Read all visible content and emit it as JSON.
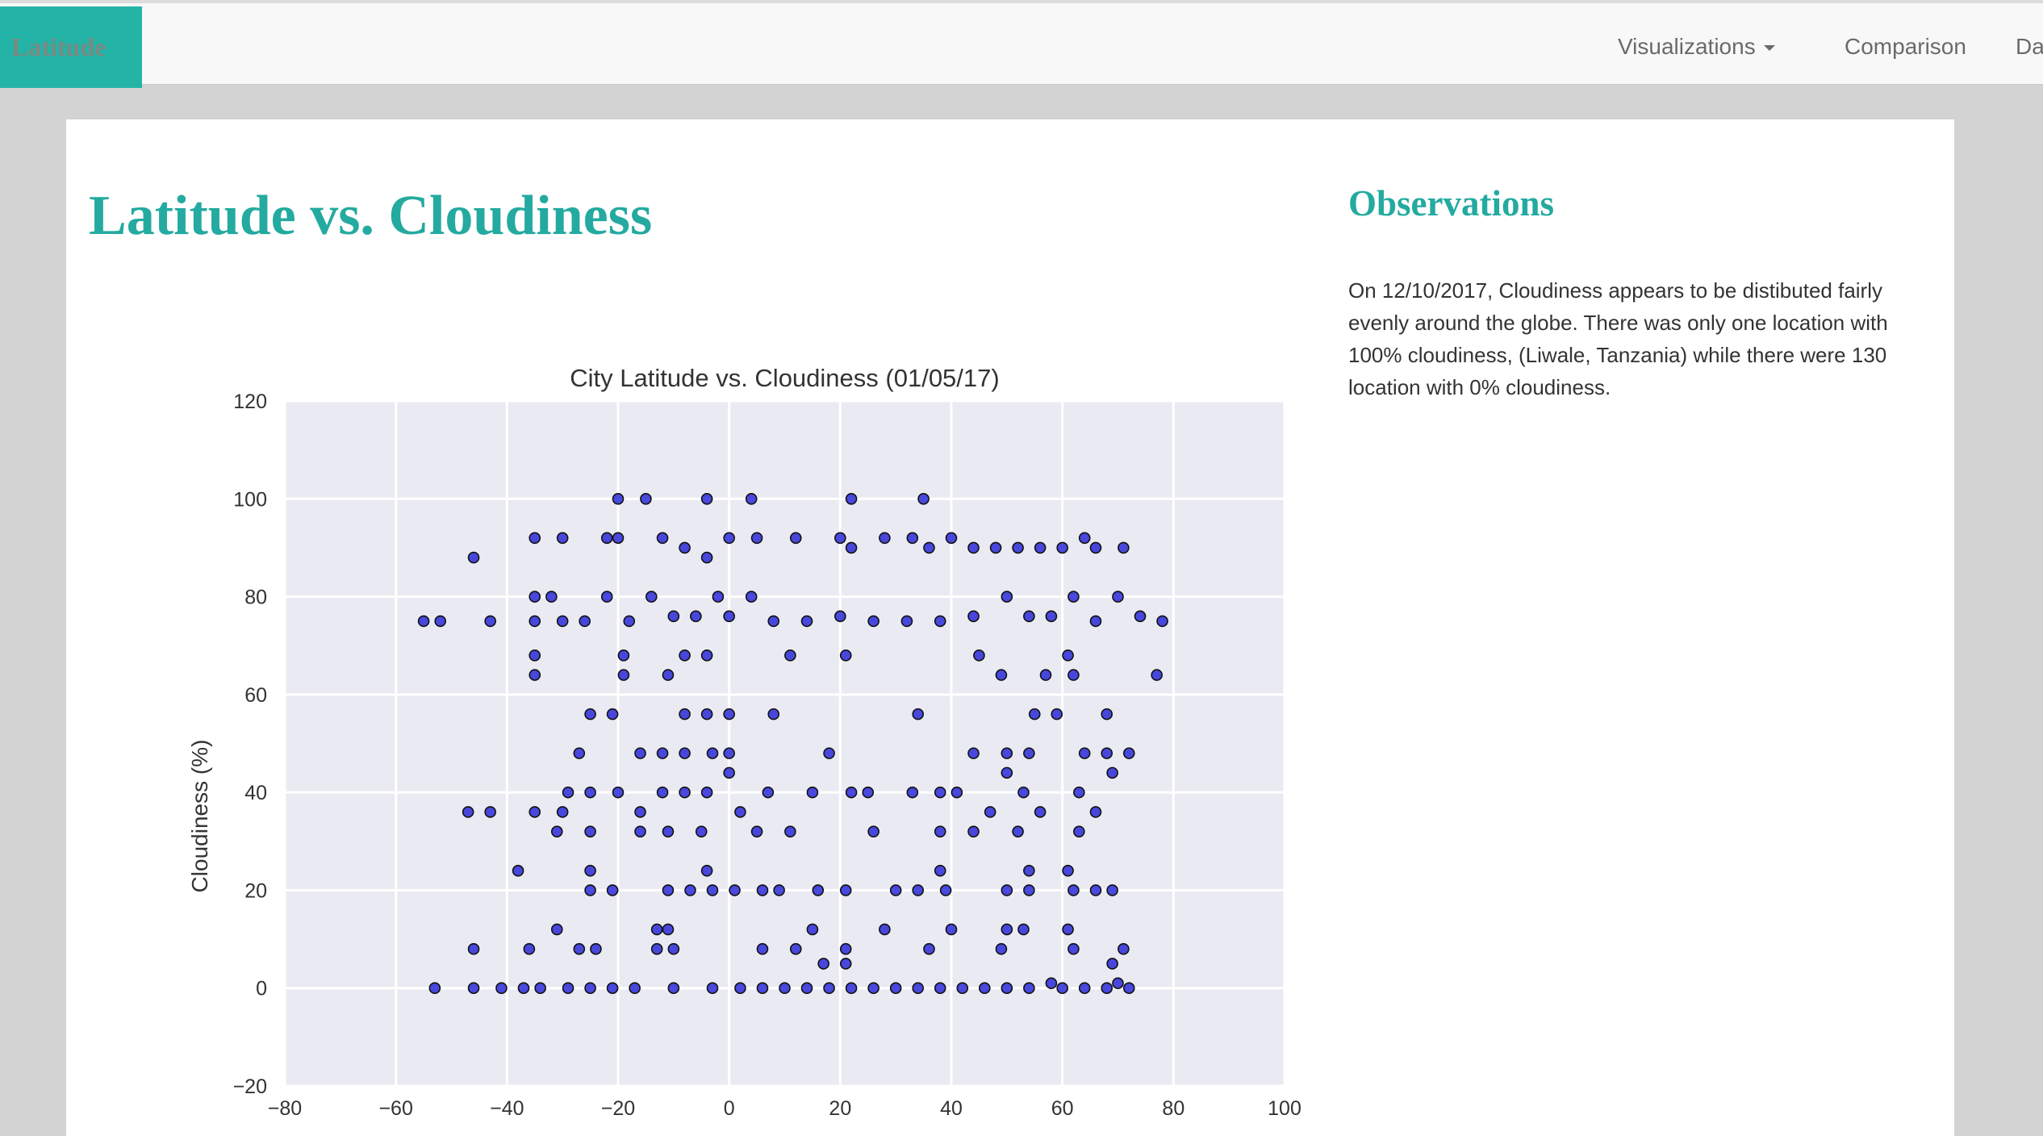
{
  "nav": {
    "brand": "Latitude",
    "items": [
      {
        "label": "Visualizations",
        "has_dropdown": true,
        "dropdown_icon": "caret-down-icon"
      },
      {
        "label": "Comparison",
        "has_dropdown": false
      },
      {
        "label": "Da",
        "has_dropdown": false
      }
    ]
  },
  "page": {
    "title": "Latitude vs. Cloudiness"
  },
  "observations": {
    "title": "Observations",
    "text": "On 12/10/2017, Cloudiness appears to be distibuted fairly evenly around the globe. There was only one location with 100% cloudiness, (Liwale, Tanzania) while there were 130 location with 0% cloudiness."
  },
  "colors": {
    "accent": "#24aaa0",
    "brand_bg": "#24b3a7",
    "plot_bg": "#eaeaf2",
    "marker": "#2a2ad8"
  },
  "chart_data": {
    "type": "scatter",
    "title": "City Latitude vs. Cloudiness (01/05/17)",
    "xlabel": "",
    "ylabel": "Cloudiness (%)",
    "xlim": [
      -80,
      100
    ],
    "ylim": [
      -20,
      120
    ],
    "xticks": [
      "−80",
      "−60",
      "−40",
      "−20",
      "0",
      "20",
      "40",
      "60",
      "80",
      "100"
    ],
    "yticks": [
      "−20",
      "0",
      "20",
      "40",
      "60",
      "80",
      "100",
      "120"
    ],
    "grid": true,
    "series": [
      {
        "points": [
          [
            -20,
            100
          ],
          [
            -15,
            100
          ],
          [
            -4,
            100
          ],
          [
            4,
            100
          ],
          [
            22,
            100
          ],
          [
            35,
            100
          ],
          [
            -46,
            88
          ],
          [
            -35,
            92
          ],
          [
            -30,
            92
          ],
          [
            -22,
            92
          ],
          [
            -20,
            92
          ],
          [
            -12,
            92
          ],
          [
            -8,
            90
          ],
          [
            -4,
            88
          ],
          [
            0,
            92
          ],
          [
            5,
            92
          ],
          [
            12,
            92
          ],
          [
            20,
            92
          ],
          [
            22,
            90
          ],
          [
            28,
            92
          ],
          [
            33,
            92
          ],
          [
            36,
            90
          ],
          [
            40,
            92
          ],
          [
            44,
            90
          ],
          [
            48,
            90
          ],
          [
            52,
            90
          ],
          [
            56,
            90
          ],
          [
            60,
            90
          ],
          [
            64,
            92
          ],
          [
            66,
            90
          ],
          [
            71,
            90
          ],
          [
            -55,
            75
          ],
          [
            -52,
            75
          ],
          [
            -43,
            75
          ],
          [
            -35,
            80
          ],
          [
            -32,
            80
          ],
          [
            -35,
            75
          ],
          [
            -30,
            75
          ],
          [
            -26,
            75
          ],
          [
            -22,
            80
          ],
          [
            -18,
            75
          ],
          [
            -14,
            80
          ],
          [
            -10,
            76
          ],
          [
            -6,
            76
          ],
          [
            -2,
            80
          ],
          [
            4,
            80
          ],
          [
            0,
            76
          ],
          [
            8,
            75
          ],
          [
            14,
            75
          ],
          [
            20,
            76
          ],
          [
            26,
            75
          ],
          [
            32,
            75
          ],
          [
            38,
            75
          ],
          [
            44,
            76
          ],
          [
            50,
            80
          ],
          [
            54,
            76
          ],
          [
            58,
            76
          ],
          [
            62,
            80
          ],
          [
            66,
            75
          ],
          [
            70,
            80
          ],
          [
            74,
            76
          ],
          [
            78,
            75
          ],
          [
            -35,
            68
          ],
          [
            -35,
            64
          ],
          [
            -19,
            68
          ],
          [
            -19,
            64
          ],
          [
            -11,
            64
          ],
          [
            -8,
            68
          ],
          [
            -4,
            68
          ],
          [
            11,
            68
          ],
          [
            21,
            68
          ],
          [
            45,
            68
          ],
          [
            49,
            64
          ],
          [
            57,
            64
          ],
          [
            61,
            68
          ],
          [
            62,
            64
          ],
          [
            77,
            64
          ],
          [
            -25,
            56
          ],
          [
            -21,
            56
          ],
          [
            -8,
            56
          ],
          [
            -4,
            56
          ],
          [
            0,
            56
          ],
          [
            8,
            56
          ],
          [
            34,
            56
          ],
          [
            55,
            56
          ],
          [
            59,
            56
          ],
          [
            68,
            56
          ],
          [
            -27,
            48
          ],
          [
            -16,
            48
          ],
          [
            -12,
            48
          ],
          [
            -8,
            48
          ],
          [
            -3,
            48
          ],
          [
            0,
            48
          ],
          [
            18,
            48
          ],
          [
            44,
            48
          ],
          [
            50,
            48
          ],
          [
            54,
            48
          ],
          [
            64,
            48
          ],
          [
            68,
            48
          ],
          [
            72,
            48
          ],
          [
            -47,
            36
          ],
          [
            -43,
            36
          ],
          [
            -35,
            36
          ],
          [
            -30,
            36
          ],
          [
            -29,
            40
          ],
          [
            -25,
            40
          ],
          [
            -20,
            40
          ],
          [
            -16,
            36
          ],
          [
            -12,
            40
          ],
          [
            -8,
            40
          ],
          [
            -4,
            40
          ],
          [
            0,
            44
          ],
          [
            2,
            36
          ],
          [
            7,
            40
          ],
          [
            15,
            40
          ],
          [
            22,
            40
          ],
          [
            25,
            40
          ],
          [
            33,
            40
          ],
          [
            38,
            40
          ],
          [
            41,
            40
          ],
          [
            47,
            36
          ],
          [
            50,
            44
          ],
          [
            53,
            40
          ],
          [
            56,
            36
          ],
          [
            63,
            40
          ],
          [
            66,
            36
          ],
          [
            69,
            44
          ],
          [
            -31,
            32
          ],
          [
            -25,
            32
          ],
          [
            -16,
            32
          ],
          [
            -11,
            32
          ],
          [
            -5,
            32
          ],
          [
            5,
            32
          ],
          [
            11,
            32
          ],
          [
            26,
            32
          ],
          [
            38,
            32
          ],
          [
            44,
            32
          ],
          [
            52,
            32
          ],
          [
            63,
            32
          ],
          [
            -38,
            24
          ],
          [
            -25,
            24
          ],
          [
            -4,
            24
          ],
          [
            38,
            24
          ],
          [
            54,
            24
          ],
          [
            61,
            24
          ],
          [
            -25,
            20
          ],
          [
            -21,
            20
          ],
          [
            -11,
            20
          ],
          [
            -7,
            20
          ],
          [
            -3,
            20
          ],
          [
            1,
            20
          ],
          [
            6,
            20
          ],
          [
            9,
            20
          ],
          [
            16,
            20
          ],
          [
            21,
            20
          ],
          [
            30,
            20
          ],
          [
            34,
            20
          ],
          [
            39,
            20
          ],
          [
            50,
            20
          ],
          [
            54,
            20
          ],
          [
            62,
            20
          ],
          [
            66,
            20
          ],
          [
            69,
            20
          ],
          [
            -31,
            12
          ],
          [
            -13,
            12
          ],
          [
            -11,
            12
          ],
          [
            15,
            12
          ],
          [
            28,
            12
          ],
          [
            40,
            12
          ],
          [
            50,
            12
          ],
          [
            53,
            12
          ],
          [
            61,
            12
          ],
          [
            71,
            8
          ],
          [
            -46,
            8
          ],
          [
            -36,
            8
          ],
          [
            -27,
            8
          ],
          [
            -24,
            8
          ],
          [
            -13,
            8
          ],
          [
            -10,
            8
          ],
          [
            6,
            8
          ],
          [
            12,
            8
          ],
          [
            21,
            8
          ],
          [
            36,
            8
          ],
          [
            49,
            8
          ],
          [
            62,
            8
          ],
          [
            69,
            5
          ],
          [
            17,
            5
          ],
          [
            21,
            5
          ],
          [
            58,
            1
          ],
          [
            70,
            1
          ],
          [
            -53,
            0
          ],
          [
            -46,
            0
          ],
          [
            -41,
            0
          ],
          [
            -37,
            0
          ],
          [
            -34,
            0
          ],
          [
            -29,
            0
          ],
          [
            -25,
            0
          ],
          [
            -21,
            0
          ],
          [
            -17,
            0
          ],
          [
            -10,
            0
          ],
          [
            -3,
            0
          ],
          [
            2,
            0
          ],
          [
            6,
            0
          ],
          [
            10,
            0
          ],
          [
            14,
            0
          ],
          [
            18,
            0
          ],
          [
            22,
            0
          ],
          [
            26,
            0
          ],
          [
            30,
            0
          ],
          [
            34,
            0
          ],
          [
            38,
            0
          ],
          [
            42,
            0
          ],
          [
            46,
            0
          ],
          [
            50,
            0
          ],
          [
            54,
            0
          ],
          [
            60,
            0
          ],
          [
            64,
            0
          ],
          [
            68,
            0
          ],
          [
            72,
            0
          ]
        ]
      }
    ]
  }
}
